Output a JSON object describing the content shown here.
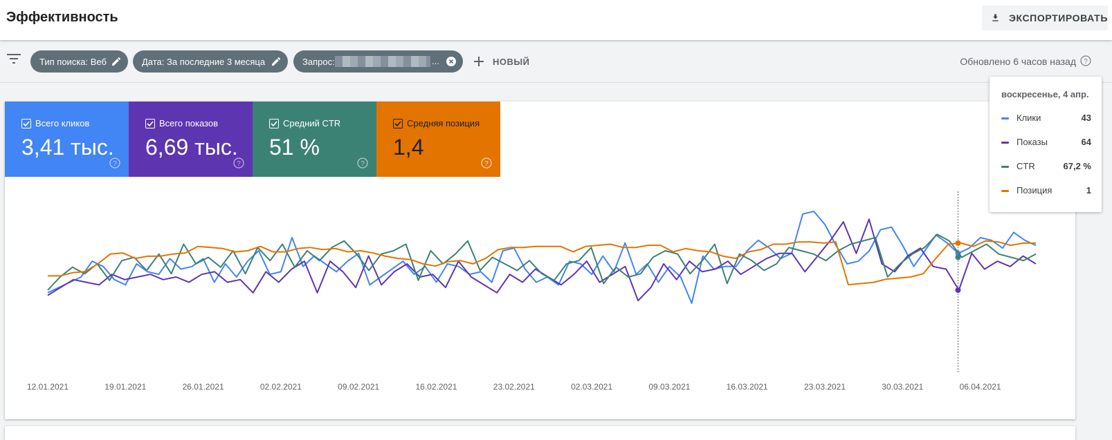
{
  "header": {
    "title": "Эффективность",
    "export_label": "ЭКСПОРТИРОВАТЬ"
  },
  "filters": {
    "chips": [
      {
        "label": "Тип поиска: Веб"
      },
      {
        "label": "Дата: За последние 3 месяца"
      },
      {
        "label": "Запрос: ",
        "suffix": "..."
      }
    ],
    "new_label": "НОВЫЙ",
    "updated": "Обновлено 6 часов назад"
  },
  "metrics": [
    {
      "label": "Всего кликов",
      "value": "3,41 тыс.",
      "color": "#4285f4"
    },
    {
      "label": "Всего показов",
      "value": "6,69 тыс.",
      "color": "#5e35b1"
    },
    {
      "label": "Средний CTR",
      "value": "51 %",
      "color": "#3b8275"
    },
    {
      "label": "Средняя позиция",
      "value": "1,4",
      "color": "#e37400"
    }
  ],
  "tooltip": {
    "date": "воскресенье, 4 апр.",
    "rows": [
      {
        "name": "Клики",
        "value": "43",
        "color": "#4285f4"
      },
      {
        "name": "Показы",
        "value": "64",
        "color": "#5e35b1"
      },
      {
        "name": "CTR",
        "value": "67,2 %",
        "color": "#3b8275"
      },
      {
        "name": "Позиция",
        "value": "1",
        "color": "#e37400"
      }
    ]
  },
  "chart_data": {
    "type": "line",
    "x_tick_labels": [
      "12.01.2021",
      "19.01.2021",
      "26.01.2021",
      "02.02.2021",
      "09.02.2021",
      "16.02.2021",
      "23.02.2021",
      "02.03.2021",
      "09.03.2021",
      "16.03.2021",
      "23.03.2021",
      "30.03.2021",
      "06.04.2021"
    ],
    "x_start": "2021-01-12",
    "hover_date": "2021-04-04",
    "series": [
      {
        "name": "Клики",
        "color": "#4285f4",
        "values": [
          26,
          28,
          30,
          32,
          38,
          36,
          31,
          29,
          37,
          34,
          33,
          39,
          35,
          36,
          39,
          30,
          37,
          32,
          38,
          42,
          33,
          34,
          47,
          36,
          40,
          37,
          34,
          38,
          41,
          29,
          32,
          35,
          38,
          33,
          36,
          30,
          37,
          36,
          33,
          34,
          30,
          42,
          43,
          35,
          30,
          32,
          29,
          38,
          37,
          33,
          40,
          34,
          45,
          33,
          37,
          30,
          36,
          32,
          22,
          40,
          35,
          36,
          36,
          42,
          46,
          43,
          39,
          41,
          56,
          57,
          52,
          44,
          37,
          38,
          42,
          50,
          51,
          44,
          36,
          42,
          48,
          45,
          41,
          43,
          47,
          46,
          43,
          49,
          46,
          44
        ]
      },
      {
        "name": "Показы",
        "color": "#5e35b1",
        "values": [
          28,
          31,
          34,
          33,
          32,
          36,
          34,
          35,
          36,
          34,
          35,
          33,
          36,
          37,
          33,
          34,
          29,
          37,
          33,
          38,
          41,
          29,
          41,
          37,
          31,
          43,
          32,
          37,
          40,
          35,
          36,
          31,
          41,
          35,
          32,
          29,
          36,
          33,
          38,
          35,
          32,
          36,
          41,
          33,
          36,
          39,
          26,
          31,
          40,
          34,
          41,
          37,
          38,
          41,
          36,
          39,
          42,
          44,
          44,
          37,
          43,
          49,
          56,
          44,
          57,
          40,
          37,
          43,
          46,
          39,
          38,
          30,
          44,
          38,
          41,
          39,
          43,
          40
        ]
      },
      {
        "name": "CTR",
        "color": "#3b8275",
        "values": [
          34,
          38,
          41,
          39,
          42,
          37,
          43,
          44,
          40,
          45,
          39,
          48,
          42,
          44,
          41,
          46,
          39,
          47,
          43,
          48,
          41,
          46,
          43,
          47,
          49,
          45,
          40,
          45,
          46,
          48,
          37,
          46,
          42,
          45,
          49,
          40,
          44,
          42,
          40,
          43,
          39,
          37,
          42,
          43,
          47,
          36,
          41,
          38,
          39,
          44,
          46,
          45,
          39,
          43,
          48,
          36,
          45,
          43,
          40,
          42,
          47,
          46,
          45,
          43,
          46,
          48,
          49,
          50,
          38,
          42,
          45,
          47,
          51,
          49,
          44,
          46,
          48,
          45,
          44,
          43,
          45
        ]
      },
      {
        "name": "Позиция",
        "color": "#e37400",
        "values": [
          1.71,
          1.71,
          1.68,
          1.67,
          1.6,
          1.51,
          1.5,
          1.55,
          1.53,
          1.53,
          1.51,
          1.5,
          1.44,
          1.45,
          1.46,
          1.49,
          1.48,
          1.44,
          1.49,
          1.49,
          1.46,
          1.45,
          1.47,
          1.46,
          1.49,
          1.48,
          1.5,
          1.53,
          1.55,
          1.56,
          1.6,
          1.62,
          1.58,
          1.57,
          1.6,
          1.55,
          1.47,
          1.45,
          1.45,
          1.44,
          1.44,
          1.44,
          1.49,
          1.44,
          1.43,
          1.42,
          1.45,
          1.45,
          1.43,
          1.43,
          1.49,
          1.46,
          1.48,
          1.49,
          1.53,
          1.55,
          1.49,
          1.47,
          1.42,
          1.42,
          1.4,
          1.4,
          1.41,
          1.4,
          1.79,
          1.78,
          1.77,
          1.74,
          1.73,
          1.72,
          1.69,
          1.55,
          1.42,
          1.41,
          1.44,
          1.39,
          1.4,
          1.43,
          1.41,
          1.41
        ]
      }
    ]
  }
}
